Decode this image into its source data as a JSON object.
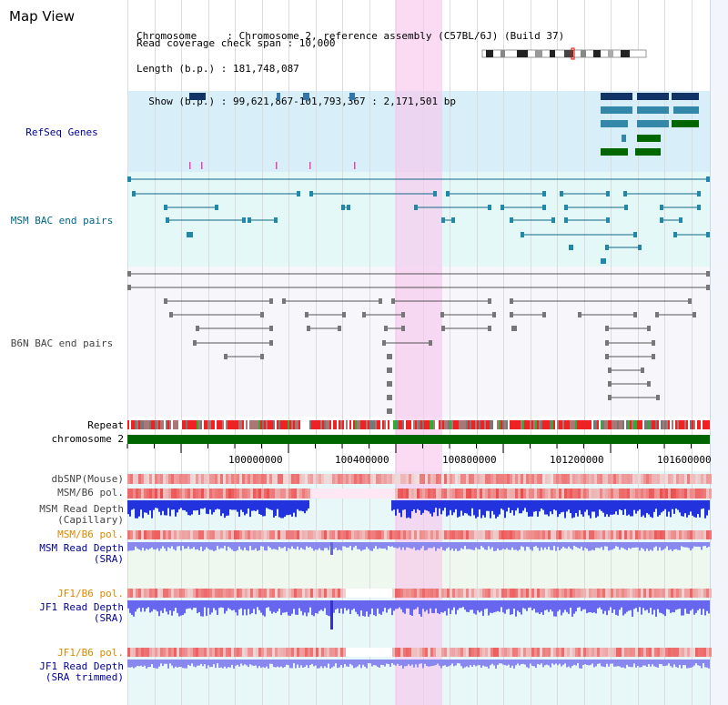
{
  "title": "Map View",
  "info": {
    "line1": "Chromosome     : Chromosome 2, reference assembly (C57BL/6J) (Build 37)",
    "line2": "Length (b.p.) : 181,748,087",
    "line3": "  Show (b.p.) : 99,621,867-101,793,367 : 2,171,501 bp",
    "line4": "Read coverage check span : 10,000"
  },
  "tracks": {
    "refseq": "RefSeq Genes",
    "msm_bac": "MSM BAC end pairs",
    "b6n_bac": "B6N BAC end pairs",
    "repeat": "Repeat",
    "chromosome": "chromosome 2",
    "dbsnp": "dbSNP(Mouse)",
    "msm_b6_pol_1": "MSM/B6 pol.",
    "msm_depth_cap_1": "MSM Read Depth",
    "msm_depth_cap_2": "(Capillary)",
    "msm_b6_pol_2": "MSM/B6 pol.",
    "msm_depth_sra_1": "MSM Read Depth",
    "msm_depth_sra_2": "(SRA)",
    "jf1_b6_pol_1": "JF1/B6 pol.",
    "jf1_depth_sra_1": "JF1 Read Depth",
    "jf1_depth_sra_2": "(SRA)",
    "jf1_b6_pol_2": "JF1/B6 pol.",
    "jf1_depth_trim_1": "JF1 Read Depth",
    "jf1_depth_trim_2": "(SRA trimmed)"
  },
  "ruler": [
    "100000000",
    "100400000",
    "100800000",
    "101200000",
    "101600000"
  ],
  "colors": {
    "highlight": "#f8d8f0",
    "refseq_bg": "#d8eef8",
    "msm_bg": "#e4f8f8",
    "chromosome": "#006600",
    "depth": "#2222dd",
    "pol": "#ee3333",
    "label_blue": "#000099",
    "label_orange": "#dd8800",
    "label_msm": "#006688"
  }
}
